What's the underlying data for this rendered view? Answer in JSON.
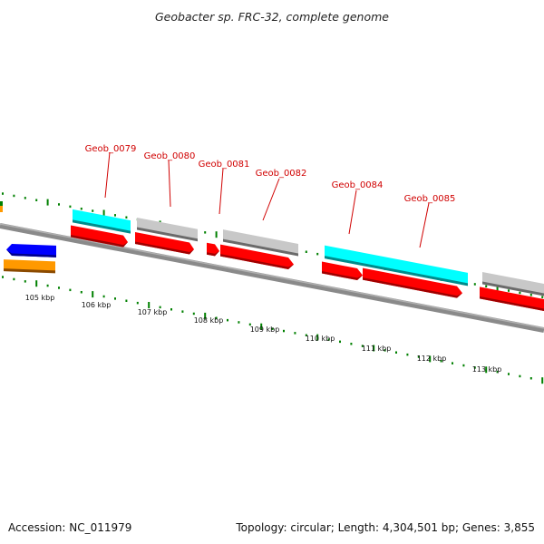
{
  "title": "Geobacter sp. FRC-32, complete genome",
  "footer": {
    "accession": "Accession: NC_011979",
    "summary": "Topology: circular; Length: 4,304,501 bp; Genes: 3,855"
  },
  "genes": [
    {
      "id": "Geob_0079"
    },
    {
      "id": "Geob_0080"
    },
    {
      "id": "Geob_0081"
    },
    {
      "id": "Geob_0082"
    },
    {
      "id": "Geob_0084"
    },
    {
      "id": "Geob_0085"
    }
  ],
  "kbp_ticks": [
    "105 kbp",
    "106 kbp",
    "107 kbp",
    "108 kbp",
    "109 kbp",
    "110 kbp",
    "111 kbp",
    "112 kbp",
    "113 kbp"
  ],
  "colors": {
    "cds": "#ff0000",
    "cyan_feature": "#00ffff",
    "gray_feature": "#c0c0c0",
    "blue_feature": "#0000ff",
    "orange_feature": "#ff9900",
    "tick_marks": "#008000",
    "gene_label": "#d00000",
    "backbone": "#888888"
  }
}
